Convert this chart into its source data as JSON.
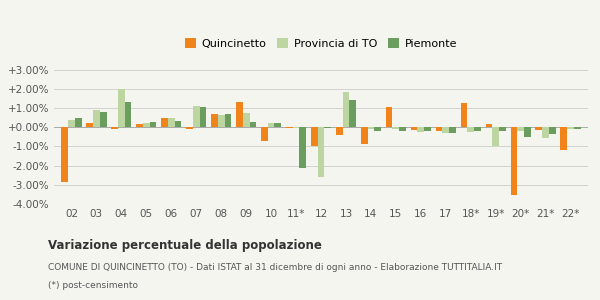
{
  "years": [
    "02",
    "03",
    "04",
    "05",
    "06",
    "07",
    "08",
    "09",
    "10",
    "11*",
    "12",
    "13",
    "14",
    "15",
    "16",
    "17",
    "18*",
    "19*",
    "20*",
    "21*",
    "22*"
  ],
  "quincinetto": [
    -2.85,
    0.2,
    -0.1,
    0.15,
    0.5,
    -0.1,
    0.7,
    1.3,
    -0.7,
    -0.05,
    -1.0,
    -0.4,
    -0.9,
    1.05,
    -0.15,
    -0.2,
    1.25,
    0.15,
    -3.55,
    -0.15,
    -1.2
  ],
  "provincia_to": [
    0.35,
    0.9,
    2.0,
    0.2,
    0.5,
    1.1,
    0.65,
    0.75,
    0.2,
    -0.05,
    -2.6,
    1.85,
    -0.1,
    -0.1,
    -0.25,
    -0.3,
    -0.25,
    -1.0,
    -0.2,
    -0.55,
    -0.1
  ],
  "piemonte": [
    0.5,
    0.8,
    1.3,
    0.25,
    0.3,
    1.05,
    0.7,
    0.25,
    0.2,
    -2.1,
    -0.05,
    1.4,
    -0.2,
    -0.2,
    -0.2,
    -0.3,
    -0.2,
    -0.2,
    -0.5,
    -0.35,
    -0.1
  ],
  "color_quincinetto": "#f0841a",
  "color_provincia": "#bdd5a0",
  "color_piemonte": "#6b9e5e",
  "title_bold": "Variazione percentuale della popolazione",
  "subtitle": "COMUNE DI QUINCINETTO (TO) - Dati ISTAT al 31 dicembre di ogni anno - Elaborazione TUTTITALIA.IT",
  "footnote": "(*) post-censimento",
  "ylim": [
    -4.0,
    3.5
  ],
  "yticks": [
    -4.0,
    -3.0,
    -2.0,
    -1.0,
    0.0,
    1.0,
    2.0,
    3.0
  ],
  "legend_labels": [
    "Quincinetto",
    "Provincia di TO",
    "Piemonte"
  ],
  "background_color": "#f5f5f0",
  "bar_width": 0.27
}
